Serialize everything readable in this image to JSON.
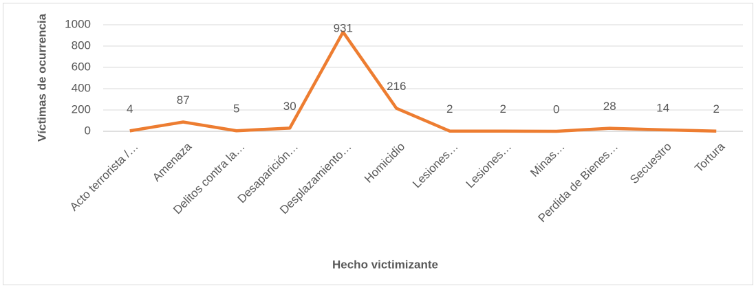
{
  "chart_data": {
    "type": "line",
    "categories": [
      "Acto terrorista /…",
      "Amenaza",
      "Delitos contra la…",
      "Desaparición…",
      "Desplazamiento…",
      "Homicidio",
      "Lesiones…",
      "Lesiones…",
      "Minas…",
      "Perdida de Bienes…",
      "Secuestro",
      "Tortura"
    ],
    "series": [
      {
        "name": "Víctimas de ocurrencia",
        "color": "#ed7d31",
        "values": [
          4,
          87,
          5,
          30,
          931,
          216,
          2,
          2,
          0,
          28,
          14,
          2
        ]
      }
    ],
    "y_label": "Víctimas de ocurrencia",
    "x_label": "Hecho victimizante",
    "ylim": [
      0,
      1000
    ],
    "yticks": [
      0,
      200,
      400,
      600,
      800,
      1000
    ],
    "grid": true
  }
}
